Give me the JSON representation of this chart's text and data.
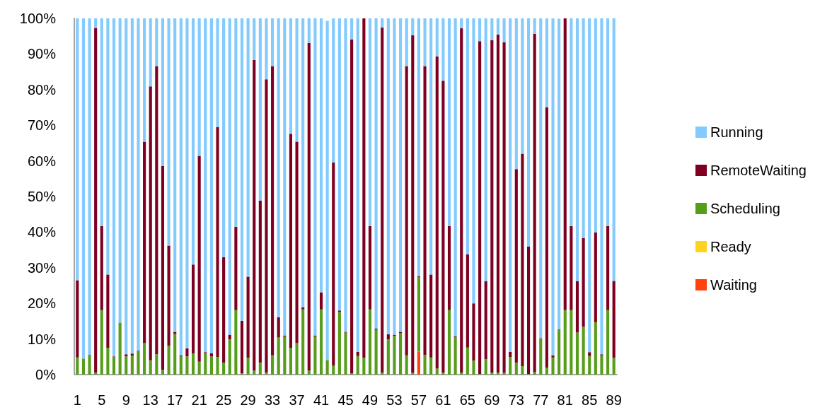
{
  "chart_data": {
    "type": "bar",
    "stacked": true,
    "categories": [
      "1",
      null,
      null,
      null,
      "5",
      null,
      null,
      null,
      "9",
      null,
      null,
      null,
      "13",
      null,
      null,
      null,
      "17",
      null,
      null,
      null,
      "21",
      null,
      null,
      null,
      "25",
      null,
      null,
      null,
      "29",
      null,
      null,
      null,
      "33",
      null,
      null,
      null,
      "37",
      null,
      null,
      null,
      "41",
      null,
      null,
      null,
      "45",
      null,
      null,
      null,
      "49",
      null,
      null,
      null,
      "53",
      null,
      null,
      null,
      "57",
      null,
      null,
      null,
      "61",
      null,
      null,
      null,
      "65",
      null,
      null,
      null,
      "69",
      null,
      null,
      null,
      "73",
      null,
      null,
      null,
      "77",
      null,
      null,
      null,
      "81",
      null,
      null,
      null,
      "85",
      null,
      null,
      null,
      "89"
    ],
    "series": [
      {
        "name": "Waiting",
        "color": "#ff420e",
        "values": [
          0,
          0,
          0,
          0,
          0,
          0,
          0,
          0,
          0,
          0,
          0,
          0,
          0,
          0,
          0,
          0,
          0,
          0,
          0,
          0,
          0,
          0,
          0,
          0,
          0,
          0,
          0,
          0,
          0,
          0,
          0,
          0,
          0,
          0,
          0,
          0,
          0,
          0,
          0,
          0,
          0,
          0,
          0,
          0,
          0,
          0,
          0,
          0,
          0,
          0,
          0,
          0,
          0,
          0,
          0,
          0,
          6.4,
          0,
          0,
          0,
          0,
          0,
          0,
          0,
          0,
          0,
          0,
          0,
          0,
          0,
          0,
          0,
          0,
          0,
          0,
          0,
          0,
          0,
          0,
          0,
          0,
          0,
          0,
          0,
          0,
          0,
          0,
          0,
          0
        ]
      },
      {
        "name": "Ready",
        "color": "#ffd320",
        "values": [
          0,
          0,
          0,
          0,
          0,
          0,
          0,
          0,
          0,
          0,
          0,
          0,
          0,
          0,
          0,
          0,
          0,
          0,
          0,
          0,
          0,
          0,
          0,
          0,
          0,
          0,
          0,
          0,
          0,
          0,
          0,
          0,
          0,
          0,
          0,
          0,
          0,
          0,
          0,
          0,
          0,
          0,
          0,
          0,
          0,
          0,
          0,
          0,
          0,
          0,
          0,
          0,
          0,
          0,
          0,
          0,
          0,
          0,
          0,
          0,
          0,
          0,
          0,
          0,
          0,
          0,
          0,
          0,
          0,
          0,
          0,
          0,
          0,
          0,
          0,
          0,
          0,
          0,
          0,
          0,
          0,
          0,
          0,
          0,
          0,
          0,
          0,
          0,
          0
        ]
      },
      {
        "name": "Scheduling",
        "color": "#579d1c",
        "values": [
          4.8,
          4.5,
          5.3,
          0.6,
          18.1,
          7.5,
          4.9,
          14.6,
          5.1,
          5.3,
          6.5,
          8.9,
          4.0,
          5.7,
          1.4,
          8.1,
          11.4,
          5.1,
          5.1,
          5.9,
          3.6,
          6.0,
          5.1,
          4.9,
          3.3,
          9.9,
          18.1,
          0.4,
          4.7,
          1.1,
          3.3,
          0.6,
          5.4,
          10.4,
          10.7,
          7.5,
          8.9,
          18.3,
          1.2,
          10.7,
          18.3,
          4.1,
          2.5,
          17.6,
          11.8,
          0.4,
          5.2,
          4.7,
          18.3,
          12.7,
          0.6,
          9.9,
          10.9,
          11.6,
          5.4,
          0.5,
          21.0,
          5.5,
          4.8,
          1.7,
          0.6,
          18.1,
          10.5,
          0.6,
          7.6,
          3.9,
          0.2,
          4.3,
          0.6,
          0.6,
          0.5,
          4.9,
          3.3,
          2.4,
          0.2,
          0.7,
          10.0,
          2.0,
          4.8,
          12.7,
          18.1,
          18.1,
          11.8,
          13.4,
          5.2,
          14.7,
          5.4,
          18.1,
          4.7
        ]
      },
      {
        "name": "RemoteWaiting",
        "color": "#7e0021",
        "values": [
          21.7,
          0,
          0.2,
          96.7,
          23.6,
          20.6,
          0.2,
          0,
          0.6,
          0.6,
          0.2,
          56.5,
          76.9,
          80.9,
          57.2,
          28.1,
          0.6,
          0.3,
          2.3,
          25.0,
          57.8,
          0.3,
          0.9,
          64.6,
          29.7,
          1.3,
          23.4,
          14.7,
          22.8,
          87.2,
          45.5,
          82.3,
          81.2,
          5.7,
          0.2,
          60.1,
          56.5,
          0.6,
          91.9,
          0.2,
          4.8,
          null,
          57.0,
          0.4,
          0.2,
          93.7,
          1.2,
          95.3,
          23.4,
          0.2,
          96.8,
          1.4,
          0.3,
          0.4,
          81.2,
          94.8,
          0.2,
          81.1,
          23.3,
          87.6,
          81.9,
          23.6,
          0.2,
          96.6,
          26.2,
          16.1,
          93.4,
          21.9,
          93.3,
          94.9,
          92.8,
          1.5,
          54.4,
          59.6,
          35.7,
          95.0,
          0.2,
          73.0,
          0.6,
          null,
          81.9,
          23.6,
          14.4,
          24.9,
          1.1,
          25.2,
          0.3,
          23.6,
          21.6
        ]
      },
      {
        "name": "Running",
        "color": "#83caff",
        "values": [
          73.5,
          95.5,
          94.5,
          2.7,
          58.3,
          71.9,
          94.9,
          85.4,
          94.3,
          94.1,
          93.3,
          34.6,
          19.1,
          13.4,
          41.4,
          63.8,
          88.0,
          94.6,
          92.6,
          69.1,
          38.6,
          93.7,
          94.0,
          30.5,
          67.0,
          88.8,
          58.5,
          84.9,
          72.5,
          11.7,
          51.2,
          17.1,
          13.4,
          83.9,
          89.1,
          32.4,
          34.6,
          81.1,
          6.9,
          89.1,
          76.9,
          95.2,
          40.5,
          82.0,
          88.0,
          5.9,
          93.6,
          0,
          58.3,
          87.1,
          2.6,
          88.7,
          88.8,
          88.0,
          13.4,
          4.7,
          72.4,
          13.4,
          71.9,
          10.7,
          17.5,
          58.3,
          89.3,
          2.8,
          66.2,
          80.0,
          6.4,
          73.8,
          6.1,
          4.5,
          6.7,
          93.6,
          42.3,
          38.0,
          64.1,
          4.3,
          89.8,
          25.0,
          94.6,
          87.2,
          0,
          58.3,
          73.8,
          61.7,
          93.7,
          60.1,
          94.3,
          58.3,
          73.7
        ]
      }
    ],
    "ylim": [
      0,
      100
    ],
    "yticks": [
      {
        "value": 0,
        "label": "0%"
      },
      {
        "value": 10,
        "label": "10%"
      },
      {
        "value": 20,
        "label": "20%"
      },
      {
        "value": 30,
        "label": "30%"
      },
      {
        "value": 40,
        "label": "40%"
      },
      {
        "value": 50,
        "label": "50%"
      },
      {
        "value": 60,
        "label": "60%"
      },
      {
        "value": 70,
        "label": "70%"
      },
      {
        "value": 80,
        "label": "80%"
      },
      {
        "value": 90,
        "label": "90%"
      },
      {
        "value": 100,
        "label": "100%"
      }
    ],
    "grid": false,
    "legend": "right"
  }
}
